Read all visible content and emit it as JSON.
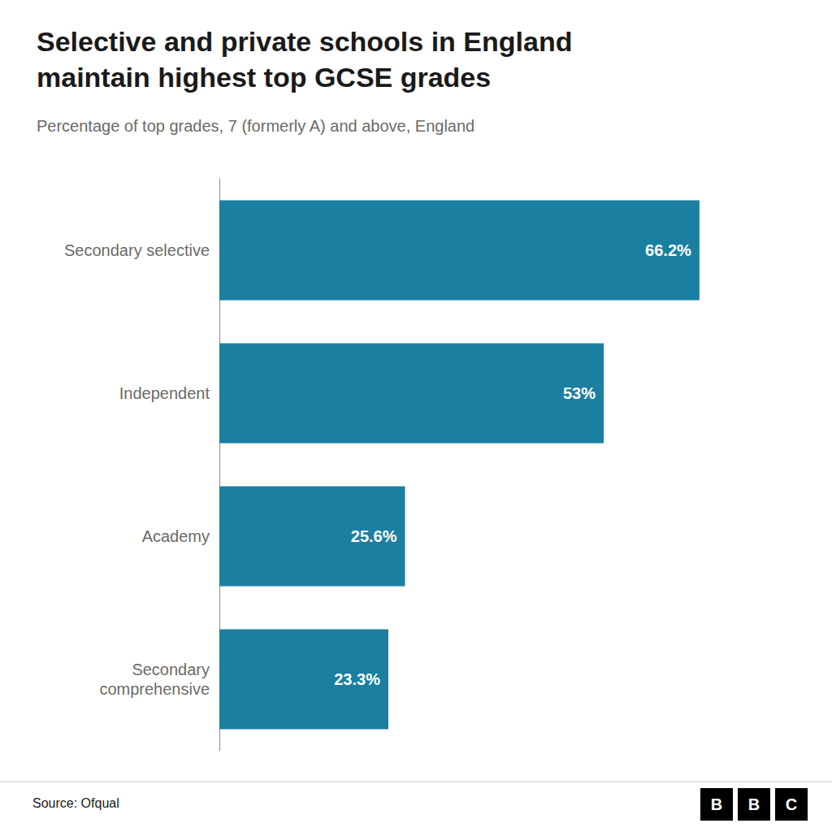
{
  "chart_data": {
    "type": "bar",
    "orientation": "horizontal",
    "title": "Selective and private schools in England\nmaintain highest top GCSE grades",
    "subtitle": "Percentage of top grades, 7 (formerly A) and above, England",
    "categories": [
      "Secondary\ncomprehensive",
      "Academy",
      "Independent",
      "Secondary selective"
    ],
    "values": [
      23.3,
      25.6,
      53.0,
      66.2
    ],
    "value_labels": [
      "23.3%",
      "25.6%",
      "53%",
      "66.2%"
    ],
    "data_labels": true,
    "color": "#1a7fa0",
    "xlim": [
      0,
      80
    ],
    "tick_labels": "y",
    "grid": false,
    "annotations": [
      "Source: Ofqual",
      "BBC"
    ]
  }
}
